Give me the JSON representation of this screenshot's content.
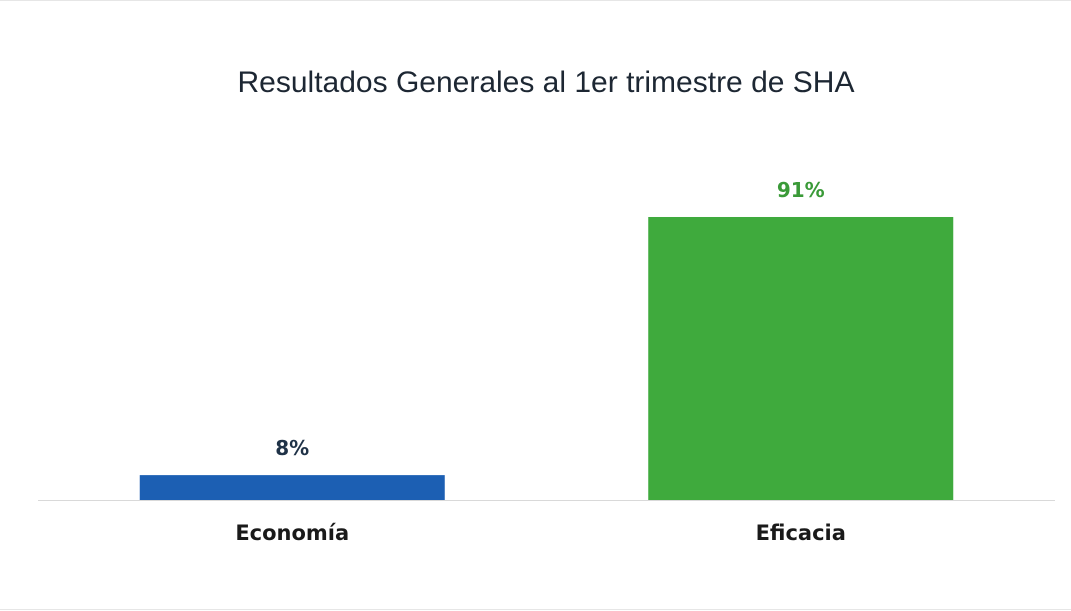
{
  "chart_data": {
    "type": "bar",
    "title": "Resultados Generales al 1er trimestre de SHA",
    "categories": [
      "Economía",
      "Eficacia"
    ],
    "values": [
      8,
      91
    ],
    "data_labels": [
      "8%",
      "91%"
    ],
    "colors": [
      "#1c5fb3",
      "#3faa3d"
    ],
    "label_colors": [
      "#1f3247",
      "#3a9a38"
    ],
    "ylim": [
      0,
      100
    ],
    "grid": false,
    "legend": "none",
    "axis_color": "#d9d9d9"
  }
}
